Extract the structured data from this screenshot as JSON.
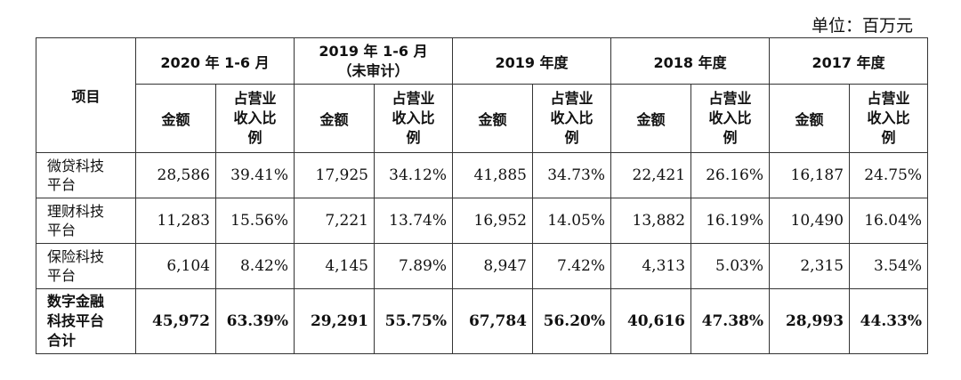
{
  "unit_label": "单位：百万元",
  "header": {
    "item": "项目",
    "periods": [
      "2020 年 1-6 月",
      "2019 年 1-6 月（未审计）",
      "2019 年度",
      "2018 年度",
      "2017 年度"
    ],
    "period_2019h1_line1": "2019 年 1-6 月",
    "period_2019h1_line2": "（未审计）",
    "amount": "金额",
    "ratio_line1": "占营业",
    "ratio_line2": "收入比",
    "ratio_line3": "例"
  },
  "rows": [
    {
      "label_line1": "微贷科技",
      "label_line2": "平台",
      "values": [
        "28,586",
        "39.41%",
        "17,925",
        "34.12%",
        "41,885",
        "34.73%",
        "22,421",
        "26.16%",
        "16,187",
        "24.75%"
      ]
    },
    {
      "label_line1": "理财科技",
      "label_line2": "平台",
      "values": [
        "11,283",
        "15.56%",
        "7,221",
        "13.74%",
        "16,952",
        "14.05%",
        "13,882",
        "16.19%",
        "10,490",
        "16.04%"
      ]
    },
    {
      "label_line1": "保险科技",
      "label_line2": "平台",
      "values": [
        "6,104",
        "8.42%",
        "4,145",
        "7.89%",
        "8,947",
        "7.42%",
        "4,313",
        "5.03%",
        "2,315",
        "3.54%"
      ]
    }
  ],
  "total": {
    "label_line1": "数字金融",
    "label_line2": "科技平台",
    "label_line3": "合计",
    "values": [
      "45,972",
      "63.39%",
      "29,291",
      "55.75%",
      "67,784",
      "56.20%",
      "40,616",
      "47.38%",
      "28,993",
      "44.33%"
    ]
  }
}
